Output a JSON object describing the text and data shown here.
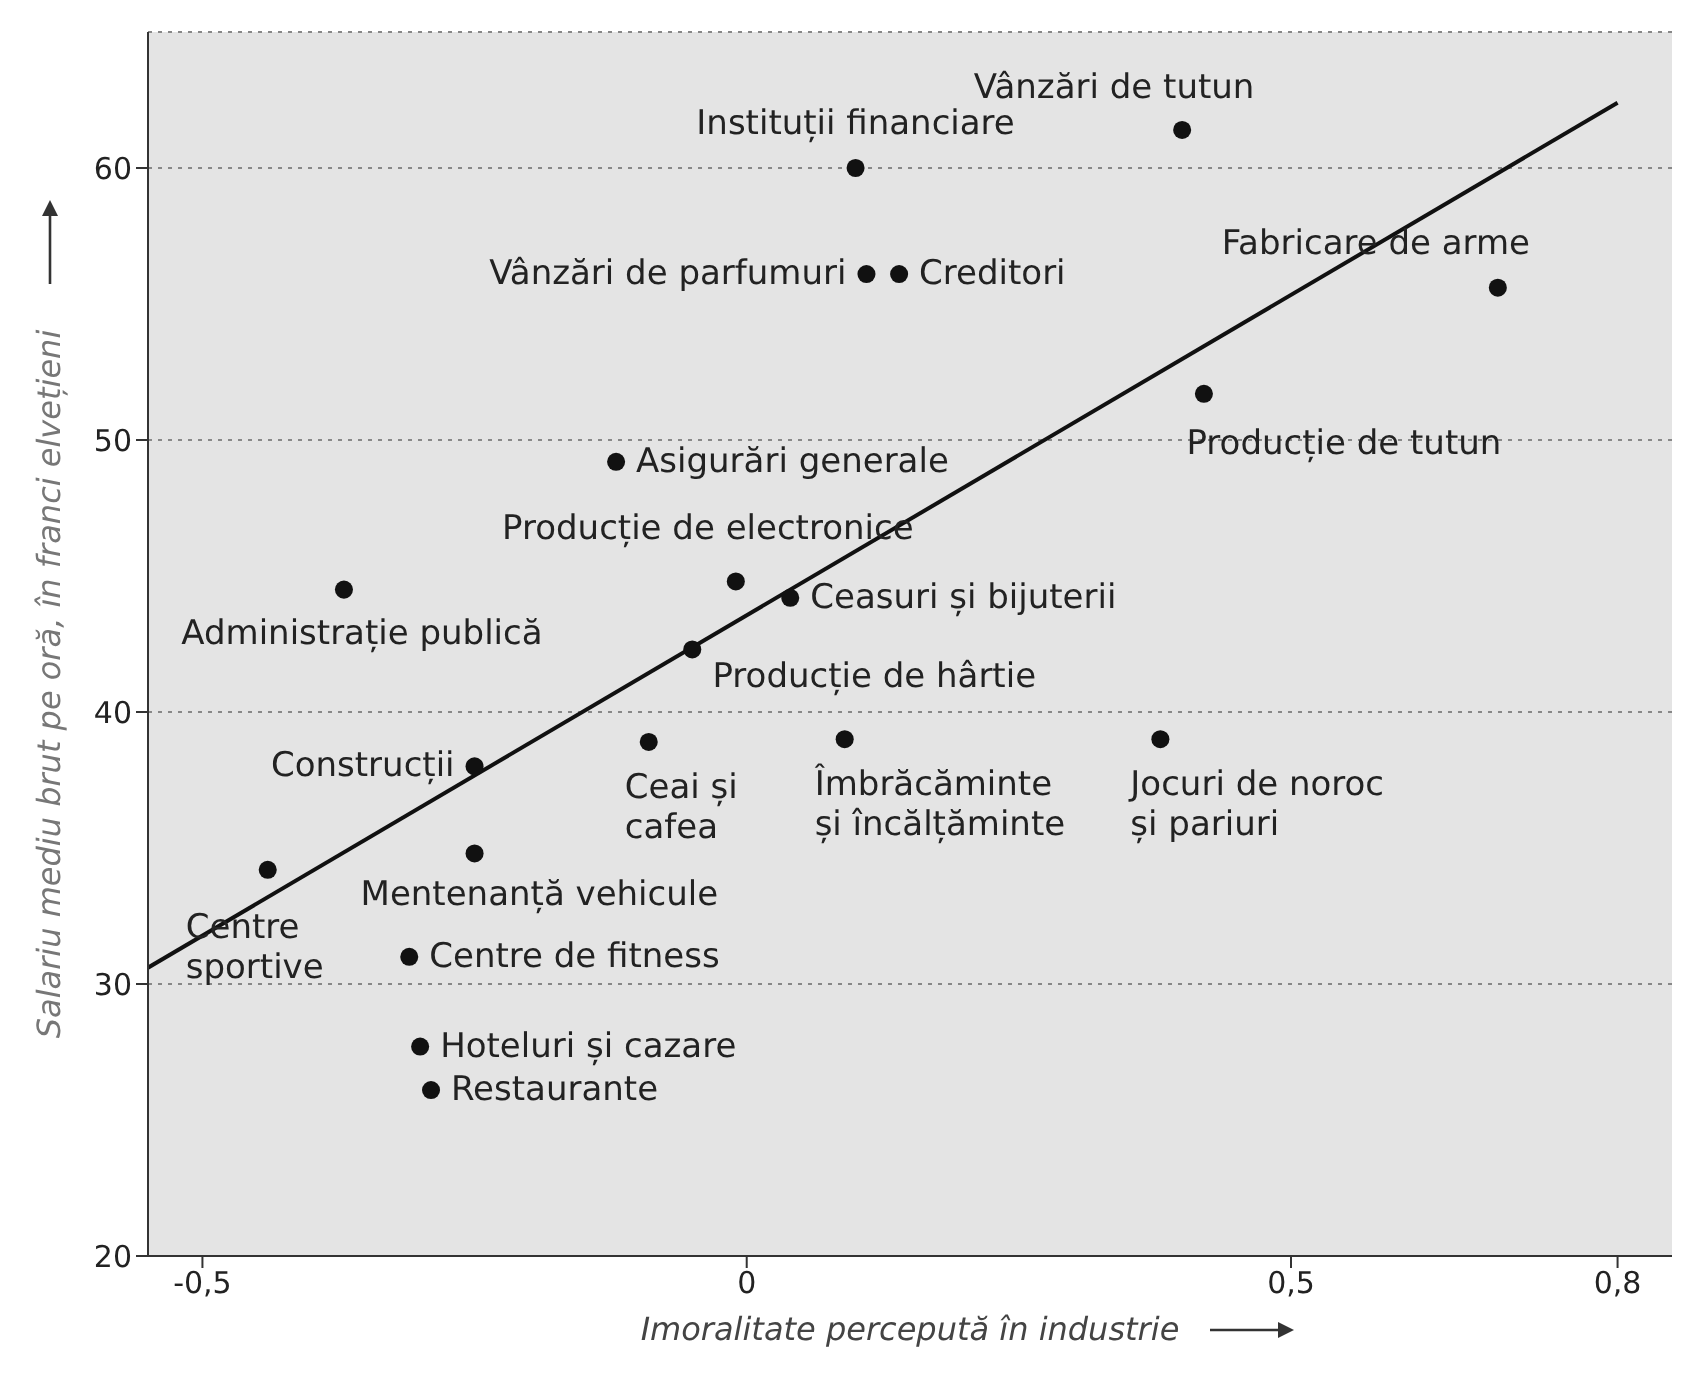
{
  "chart_data": {
    "type": "scatter",
    "xlabel": "Imoralitate percepută în industrie",
    "ylabel": "Salariu mediu brut pe oră, în franci elvețieni",
    "xlim": [
      -0.55,
      0.85
    ],
    "ylim": [
      20,
      65
    ],
    "xticks": [
      {
        "value": -0.5,
        "label": "-0,5"
      },
      0,
      {
        "value": 0.5,
        "label": "0,5"
      },
      {
        "value": 0.8,
        "label": "0,8"
      }
    ],
    "yticks": [
      20,
      30,
      40,
      50,
      60
    ],
    "grid": "y",
    "series": [
      {
        "color": "#111111",
        "marker": "circle",
        "x": [
          0.4,
          0.1,
          0.11,
          0.14,
          0.69,
          0.42,
          -0.12,
          -0.37,
          -0.01,
          0.04,
          -0.05,
          -0.25,
          -0.09,
          0.09,
          0.38,
          -0.25,
          -0.44,
          -0.31,
          -0.3,
          -0.29
        ],
        "values": [
          61.4,
          60,
          56.1,
          56.1,
          55.6,
          51.7,
          49.2,
          44.5,
          44.8,
          44.2,
          42.3,
          38.0,
          38.9,
          39.0,
          39.0,
          34.8,
          34.2,
          31.0,
          27.7,
          26.1
        ]
      },
      {
        "type": "line",
        "color": "#111111",
        "marker": "none",
        "x": [
          -0.55,
          0.8
        ],
        "values": [
          30.6,
          62.4
        ]
      }
    ],
    "annotations": [
      {
        "text": "Vânzări de tutun",
        "x": 0.4,
        "y": 61.4
      },
      {
        "text": "Instituții financiare",
        "x": 0.1,
        "y": 60
      },
      {
        "text": "Vânzări de parfumuri",
        "x": 0.11,
        "y": 56.1
      },
      {
        "text": "Creditori",
        "x": 0.14,
        "y": 56.1
      },
      {
        "text": "Fabricare de arme",
        "x": 0.69,
        "y": 55.6
      },
      {
        "text": "Producție de tutun",
        "x": 0.42,
        "y": 51.7
      },
      {
        "text": "Asigurări generale",
        "x": -0.12,
        "y": 49.2
      },
      {
        "text": "Administrație publică",
        "x": -0.37,
        "y": 44.5
      },
      {
        "text": "Producție de electronice",
        "x": -0.01,
        "y": 44.8
      },
      {
        "text": "Ceasuri și bijuterii",
        "x": 0.04,
        "y": 44.2
      },
      {
        "text": "Producție de hârtie",
        "x": -0.05,
        "y": 42.3
      },
      {
        "text": "Construcții",
        "x": -0.25,
        "y": 38.0
      },
      {
        "text": "Ceai și\ncafea",
        "x": -0.09,
        "y": 38.9
      },
      {
        "text": "Îmbrăcăminte\nși încălțăminte",
        "x": 0.09,
        "y": 39.0
      },
      {
        "text": "Jocuri de noroc\nși pariuri",
        "x": 0.38,
        "y": 39.0
      },
      {
        "text": "Mentenanță vehicule",
        "x": -0.25,
        "y": 34.8
      },
      {
        "text": "Centre\nsportive",
        "x": -0.44,
        "y": 34.2
      },
      {
        "text": "Centre de fitness",
        "x": -0.31,
        "y": 31.0
      },
      {
        "text": "Hoteluri și cazare",
        "x": -0.3,
        "y": 27.7
      },
      {
        "text": "Restaurante",
        "x": -0.29,
        "y": 26.1
      }
    ]
  }
}
